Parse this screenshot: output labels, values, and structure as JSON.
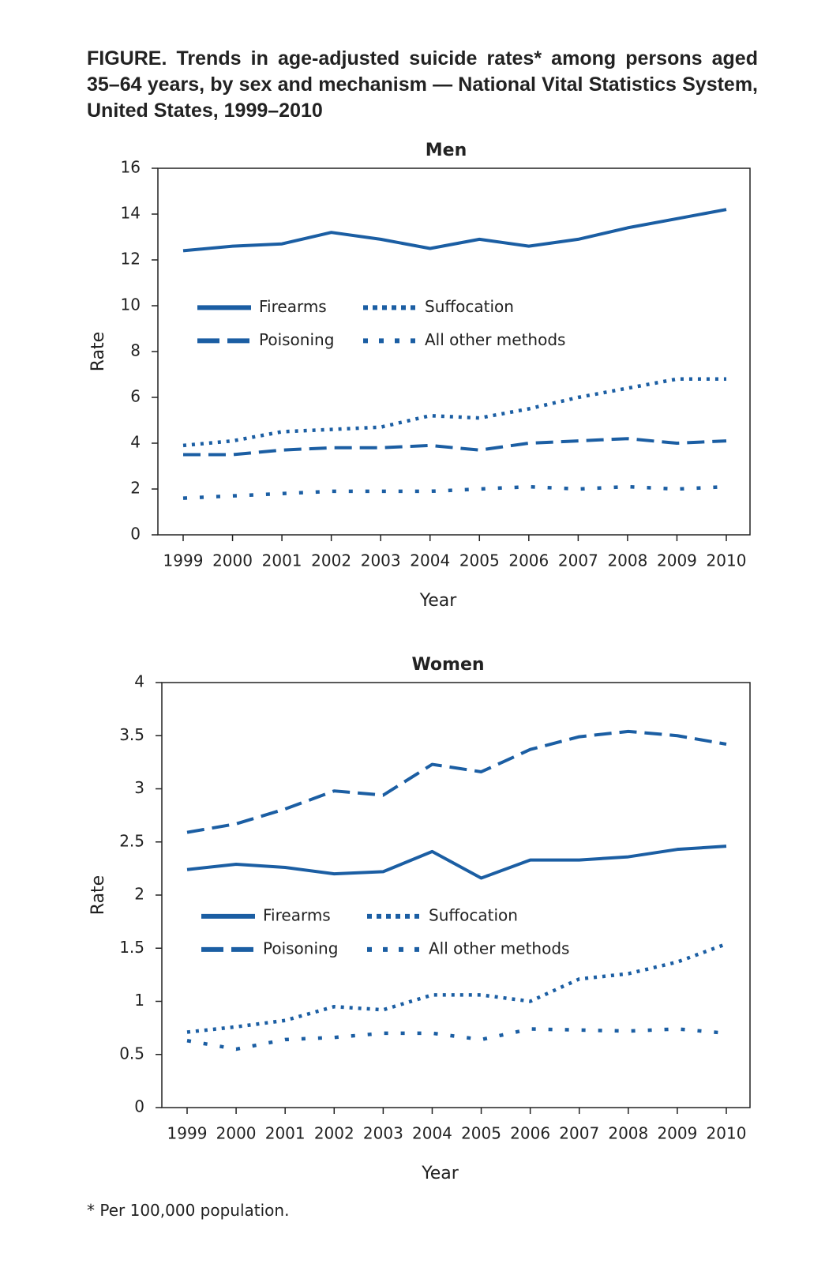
{
  "title": "FIGURE. Trends in age-adjusted suicide rates* among persons aged 35–64 years, by sex and mechanism — National Vital Statistics System, United States, 1999–2010",
  "footnote": "* Per 100,000 population.",
  "chart_data": [
    {
      "type": "line",
      "title": "Men",
      "x_label": "Year",
      "y_label": "Rate",
      "categories": [
        "1999",
        "2000",
        "2001",
        "2002",
        "2003",
        "2004",
        "2005",
        "2006",
        "2007",
        "2008",
        "2009",
        "2010"
      ],
      "ylim": [
        0,
        16
      ],
      "yticks": [
        0,
        2,
        4,
        6,
        8,
        10,
        12,
        14,
        16
      ],
      "legend": "upper-left",
      "series": [
        {
          "name": "Firearms",
          "color": "#1b5ea3",
          "dash": "solid",
          "values": [
            12.4,
            12.6,
            12.7,
            13.2,
            12.9,
            12.5,
            12.9,
            12.6,
            12.9,
            13.4,
            13.8,
            14.2
          ]
        },
        {
          "name": "Poisoning",
          "color": "#1b5ea3",
          "dash": "dashed",
          "values": [
            3.5,
            3.5,
            3.7,
            3.8,
            3.8,
            3.9,
            3.7,
            4.0,
            4.1,
            4.2,
            4.0,
            4.1
          ]
        },
        {
          "name": "Suffocation",
          "color": "#1b5ea3",
          "dash": "dotted",
          "values": [
            3.9,
            4.1,
            4.5,
            4.6,
            4.7,
            5.2,
            5.1,
            5.5,
            6.0,
            6.4,
            6.8,
            6.8
          ]
        },
        {
          "name": "All other methods",
          "color": "#1b5ea3",
          "dash": "sparse",
          "values": [
            1.6,
            1.7,
            1.8,
            1.9,
            1.9,
            1.9,
            2.0,
            2.1,
            2.0,
            2.1,
            2.0,
            2.1
          ]
        }
      ]
    },
    {
      "type": "line",
      "title": "Women",
      "x_label": "Year",
      "y_label": "Rate",
      "categories": [
        "1999",
        "2000",
        "2001",
        "2002",
        "2003",
        "2004",
        "2005",
        "2006",
        "2007",
        "2008",
        "2009",
        "2010"
      ],
      "ylim": [
        0,
        4
      ],
      "yticks": [
        0,
        0.5,
        1,
        1.5,
        2,
        2.5,
        3,
        3.5,
        4
      ],
      "legend": "lower-left",
      "series": [
        {
          "name": "Firearms",
          "color": "#1b5ea3",
          "dash": "solid",
          "values": [
            2.24,
            2.29,
            2.26,
            2.2,
            2.22,
            2.41,
            2.16,
            2.33,
            2.33,
            2.36,
            2.43,
            2.46
          ]
        },
        {
          "name": "Poisoning",
          "color": "#1b5ea3",
          "dash": "dashed",
          "values": [
            2.59,
            2.67,
            2.81,
            2.98,
            2.94,
            3.23,
            3.16,
            3.37,
            3.49,
            3.54,
            3.5,
            3.42
          ]
        },
        {
          "name": "Suffocation",
          "color": "#1b5ea3",
          "dash": "dotted",
          "values": [
            0.71,
            0.76,
            0.82,
            0.95,
            0.92,
            1.06,
            1.06,
            1.0,
            1.21,
            1.26,
            1.37,
            1.54
          ]
        },
        {
          "name": "All other methods",
          "color": "#1b5ea3",
          "dash": "sparse",
          "values": [
            0.63,
            0.55,
            0.64,
            0.66,
            0.7,
            0.7,
            0.64,
            0.74,
            0.73,
            0.72,
            0.74,
            0.7
          ]
        }
      ]
    }
  ]
}
